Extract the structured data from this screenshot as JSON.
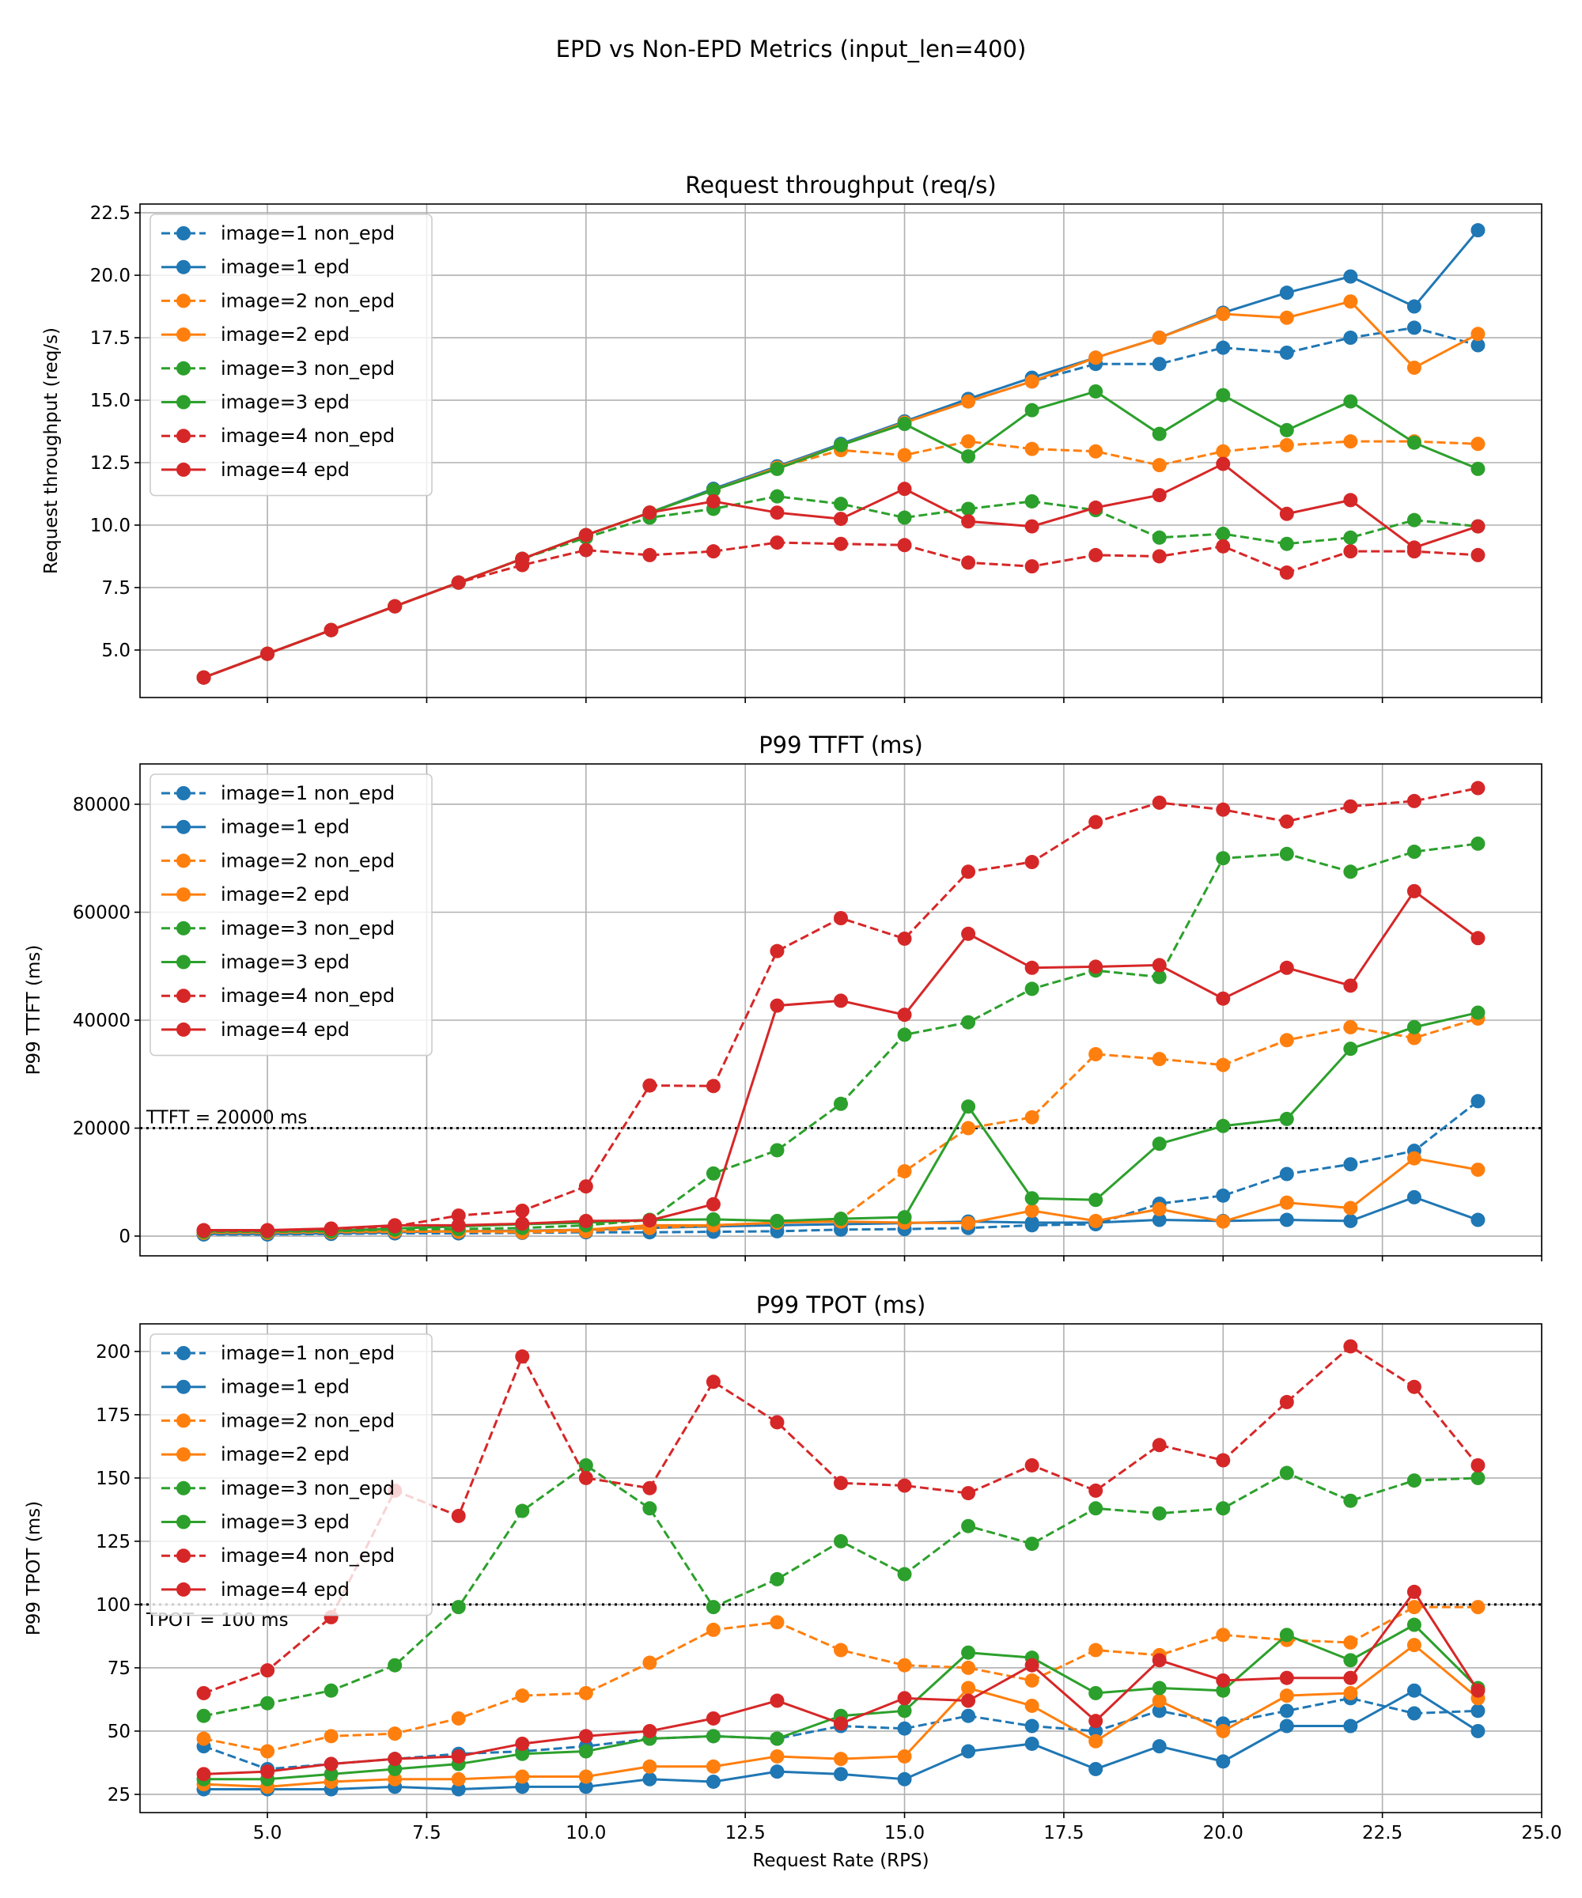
{
  "suptitle": "EPD vs Non-EPD Metrics (input_len=400)",
  "colors": {
    "image=1": "#1f77b4",
    "image=2": "#ff7f0e",
    "image=3": "#2ca02c",
    "image=4": "#d62728"
  },
  "chart_data": [
    {
      "type": "line",
      "title": "Request throughput (req/s)",
      "xlabel": "",
      "ylabel": "Request throughput (req/s)",
      "xlim": [
        3,
        25
      ],
      "ylim": [
        3.1,
        22.85
      ],
      "xticks": [
        5,
        7.5,
        10,
        12.5,
        15,
        17.5,
        20,
        22.5,
        25
      ],
      "xtick_labels": [],
      "yticks": [
        5,
        7.5,
        10,
        12.5,
        15,
        17.5,
        20,
        22.5
      ],
      "ytick_labels": [
        "5.0",
        "7.5",
        "10.0",
        "12.5",
        "15.0",
        "17.5",
        "20.0",
        "22.5"
      ],
      "grid": true,
      "legend": "upper-left",
      "x": [
        4,
        5,
        6,
        7,
        8,
        9,
        10,
        11,
        12,
        13,
        14,
        15,
        16,
        17,
        18,
        19,
        20,
        21,
        22,
        23,
        24
      ],
      "series": [
        {
          "name": "image=1 non_epd",
          "color": "#1f77b4",
          "dashed": true,
          "values": [
            3.9,
            4.85,
            5.8,
            6.75,
            7.7,
            8.65,
            9.6,
            10.5,
            11.45,
            12.35,
            13.2,
            14.1,
            14.95,
            15.75,
            16.45,
            16.45,
            17.1,
            16.9,
            17.5,
            17.9,
            17.2
          ]
        },
        {
          "name": "image=1 epd",
          "color": "#1f77b4",
          "dashed": false,
          "values": [
            3.9,
            4.85,
            5.8,
            6.75,
            7.7,
            8.65,
            9.6,
            10.5,
            11.45,
            12.35,
            13.25,
            14.15,
            15.05,
            15.9,
            16.7,
            17.5,
            18.5,
            19.3,
            19.95,
            18.75,
            21.8
          ]
        },
        {
          "name": "image=2 non_epd",
          "color": "#ff7f0e",
          "dashed": true,
          "values": [
            3.9,
            4.85,
            5.8,
            6.75,
            7.7,
            8.65,
            9.6,
            10.5,
            11.4,
            12.3,
            13.0,
            12.8,
            13.35,
            13.05,
            12.95,
            12.4,
            12.95,
            13.2,
            13.35,
            13.35,
            13.25
          ]
        },
        {
          "name": "image=2 epd",
          "color": "#ff7f0e",
          "dashed": false,
          "values": [
            3.9,
            4.85,
            5.8,
            6.75,
            7.7,
            8.65,
            9.6,
            10.5,
            11.4,
            12.3,
            13.2,
            14.1,
            14.95,
            15.75,
            16.7,
            17.5,
            18.45,
            18.3,
            18.95,
            16.3,
            17.65
          ]
        },
        {
          "name": "image=3 non_epd",
          "color": "#2ca02c",
          "dashed": true,
          "values": [
            3.9,
            4.85,
            5.8,
            6.75,
            7.7,
            8.65,
            9.5,
            10.3,
            10.65,
            11.15,
            10.85,
            10.3,
            10.65,
            10.95,
            10.6,
            9.5,
            9.65,
            9.25,
            9.5,
            10.2,
            9.95
          ]
        },
        {
          "name": "image=3 epd",
          "color": "#2ca02c",
          "dashed": false,
          "values": [
            3.9,
            4.85,
            5.8,
            6.75,
            7.7,
            8.65,
            9.6,
            10.5,
            11.4,
            12.25,
            13.2,
            14.05,
            12.75,
            14.6,
            15.35,
            13.65,
            15.2,
            13.8,
            14.95,
            13.3,
            12.25
          ]
        },
        {
          "name": "image=4 non_epd",
          "color": "#d62728",
          "dashed": true,
          "values": [
            3.9,
            4.85,
            5.8,
            6.75,
            7.7,
            8.4,
            9.0,
            8.8,
            8.95,
            9.3,
            9.25,
            9.2,
            8.5,
            8.35,
            8.8,
            8.75,
            9.15,
            8.1,
            8.95,
            8.95,
            8.8
          ]
        },
        {
          "name": "image=4 epd",
          "color": "#d62728",
          "dashed": false,
          "values": [
            3.9,
            4.85,
            5.8,
            6.75,
            7.7,
            8.65,
            9.6,
            10.5,
            10.95,
            10.5,
            10.25,
            11.45,
            10.15,
            9.95,
            10.7,
            11.2,
            12.45,
            10.45,
            11.0,
            9.1,
            9.95
          ]
        }
      ]
    },
    {
      "type": "line",
      "title": "P99 TTFT (ms)",
      "xlabel": "",
      "ylabel": "P99 TTFT (ms)",
      "xlim": [
        3,
        25
      ],
      "ylim": [
        -3660,
        87470
      ],
      "xticks": [
        5,
        7.5,
        10,
        12.5,
        15,
        17.5,
        20,
        22.5,
        25
      ],
      "xtick_labels": [],
      "yticks": [
        0,
        20000,
        40000,
        60000,
        80000
      ],
      "ytick_labels": [
        "0",
        "20000",
        "40000",
        "60000",
        "80000"
      ],
      "grid": true,
      "legend": "upper-left",
      "reference_line": {
        "y": 20000,
        "label": "TTFT = 20000 ms"
      },
      "x": [
        4,
        5,
        6,
        7,
        8,
        9,
        10,
        11,
        12,
        13,
        14,
        15,
        16,
        17,
        18,
        19,
        20,
        21,
        22,
        23,
        24
      ],
      "series": [
        {
          "name": "image=1 non_epd",
          "color": "#1f77b4",
          "dashed": true,
          "values": [
            300,
            300,
            400,
            500,
            500,
            600,
            700,
            700,
            800,
            900,
            1200,
            1300,
            1500,
            2000,
            2200,
            6000,
            7500,
            11500,
            13300,
            15800,
            25000
          ]
        },
        {
          "name": "image=1 epd",
          "color": "#1f77b4",
          "dashed": false,
          "values": [
            400,
            400,
            500,
            700,
            900,
            1000,
            1200,
            1500,
            1800,
            2000,
            2200,
            2400,
            2700,
            2500,
            2500,
            3000,
            2800,
            3000,
            2800,
            7200,
            3000
          ]
        },
        {
          "name": "image=2 non_epd",
          "color": "#ff7f0e",
          "dashed": true,
          "values": [
            600,
            600,
            700,
            800,
            800,
            700,
            900,
            1500,
            2000,
            2500,
            3200,
            12000,
            20000,
            22000,
            33700,
            32800,
            31700,
            36300,
            38700,
            36700,
            40300
          ]
        },
        {
          "name": "image=2 epd",
          "color": "#ff7f0e",
          "dashed": false,
          "values": [
            700,
            700,
            800,
            900,
            900,
            900,
            1200,
            2000,
            2000,
            2500,
            2700,
            2500,
            2400,
            4700,
            2800,
            5000,
            2700,
            6200,
            5200,
            14400,
            12300
          ]
        },
        {
          "name": "image=3 non_epd",
          "color": "#2ca02c",
          "dashed": true,
          "values": [
            800,
            800,
            900,
            1200,
            1300,
            1500,
            2000,
            3000,
            11600,
            15900,
            24500,
            37300,
            39600,
            45800,
            49200,
            48000,
            70000,
            70800,
            67500,
            71200,
            72700
          ]
        },
        {
          "name": "image=3 epd",
          "color": "#2ca02c",
          "dashed": false,
          "values": [
            900,
            900,
            1000,
            1400,
            1800,
            2200,
            2500,
            3000,
            3100,
            2800,
            3200,
            3500,
            24000,
            7000,
            6700,
            17100,
            20400,
            21700,
            34700,
            38700,
            41400
          ]
        },
        {
          "name": "image=4 non_epd",
          "color": "#d62728",
          "dashed": true,
          "values": [
            1000,
            1000,
            1300,
            1800,
            3800,
            4700,
            9200,
            27900,
            27800,
            52800,
            58900,
            55100,
            67500,
            69300,
            76700,
            80300,
            79000,
            76800,
            79600,
            80600,
            83000
          ]
        },
        {
          "name": "image=4 epd",
          "color": "#d62728",
          "dashed": false,
          "values": [
            1100,
            1100,
            1400,
            2000,
            2000,
            2300,
            2800,
            2900,
            5900,
            42700,
            43600,
            41000,
            56000,
            49700,
            49900,
            50200,
            44000,
            49700,
            46400,
            63900,
            55200
          ]
        }
      ]
    },
    {
      "type": "line",
      "title": "P99 TPOT (ms)",
      "xlabel": "Request Rate (RPS)",
      "ylabel": "P99 TPOT (ms)",
      "xlim": [
        3,
        25
      ],
      "ylim": [
        17.8,
        210.9
      ],
      "xticks": [
        5,
        7.5,
        10,
        12.5,
        15,
        17.5,
        20,
        22.5,
        25
      ],
      "xtick_labels": [
        "5.0",
        "7.5",
        "10.0",
        "12.5",
        "15.0",
        "17.5",
        "20.0",
        "22.5",
        "25.0"
      ],
      "yticks": [
        25,
        50,
        75,
        100,
        125,
        150,
        175,
        200
      ],
      "ytick_labels": [
        "25",
        "50",
        "75",
        "100",
        "125",
        "150",
        "175",
        "200"
      ],
      "grid": true,
      "legend": "upper-left",
      "reference_line": {
        "y": 100,
        "label": "TPOT = 100 ms"
      },
      "x": [
        4,
        5,
        6,
        7,
        8,
        9,
        10,
        11,
        12,
        13,
        14,
        15,
        16,
        17,
        18,
        19,
        20,
        21,
        22,
        23,
        24
      ],
      "series": [
        {
          "name": "image=1 non_epd",
          "color": "#1f77b4",
          "dashed": true,
          "values": [
            44,
            35,
            37,
            39,
            41,
            42,
            44,
            47,
            48,
            47,
            52,
            51,
            56,
            52,
            50,
            58,
            53,
            58,
            63,
            57,
            58
          ]
        },
        {
          "name": "image=1 epd",
          "color": "#1f77b4",
          "dashed": false,
          "values": [
            27,
            27,
            27,
            28,
            27,
            28,
            28,
            31,
            30,
            34,
            33,
            31,
            42,
            45,
            35,
            44,
            38,
            52,
            52,
            66,
            50
          ]
        },
        {
          "name": "image=2 non_epd",
          "color": "#ff7f0e",
          "dashed": true,
          "values": [
            47,
            42,
            48,
            49,
            55,
            64,
            65,
            77,
            90,
            93,
            82,
            76,
            75,
            70,
            82,
            80,
            88,
            86,
            85,
            99,
            99
          ]
        },
        {
          "name": "image=2 epd",
          "color": "#ff7f0e",
          "dashed": false,
          "values": [
            29,
            28,
            30,
            31,
            31,
            32,
            32,
            36,
            36,
            40,
            39,
            40,
            67,
            60,
            46,
            62,
            50,
            64,
            65,
            84,
            63
          ]
        },
        {
          "name": "image=3 non_epd",
          "color": "#2ca02c",
          "dashed": true,
          "values": [
            56,
            61,
            66,
            76,
            99,
            137,
            155,
            138,
            99,
            110,
            125,
            112,
            131,
            124,
            138,
            136,
            138,
            152,
            141,
            149,
            150
          ]
        },
        {
          "name": "image=3 epd",
          "color": "#2ca02c",
          "dashed": false,
          "values": [
            31,
            31,
            33,
            35,
            37,
            41,
            42,
            47,
            48,
            47,
            56,
            58,
            81,
            79,
            65,
            67,
            66,
            88,
            78,
            92,
            67
          ]
        },
        {
          "name": "image=4 non_epd",
          "color": "#d62728",
          "dashed": true,
          "values": [
            65,
            74,
            95,
            145,
            135,
            198,
            150,
            146,
            188,
            172,
            148,
            147,
            144,
            155,
            145,
            163,
            157,
            180,
            202,
            186,
            155
          ]
        },
        {
          "name": "image=4 epd",
          "color": "#d62728",
          "dashed": false,
          "values": [
            33,
            34,
            37,
            39,
            40,
            45,
            48,
            50,
            55,
            62,
            53,
            63,
            62,
            76,
            54,
            78,
            70,
            71,
            71,
            105,
            66
          ]
        }
      ]
    }
  ]
}
